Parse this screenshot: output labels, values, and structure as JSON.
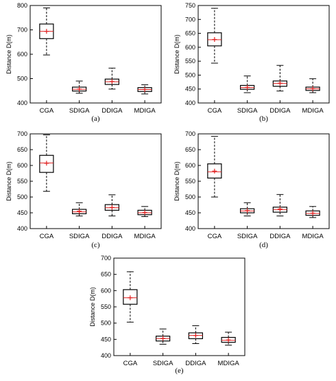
{
  "chart_data": [
    {
      "type": "box",
      "panel": "(a)",
      "ylabel": "Distance D(m)",
      "ylim": [
        400,
        800
      ],
      "yticks": [
        400,
        500,
        600,
        700,
        800
      ],
      "categories": [
        "CGA",
        "SDIGA",
        "DDIGA",
        "MDIGA"
      ],
      "boxes": [
        {
          "min": 597,
          "q1": 664,
          "median": 694,
          "q3": 724,
          "max": 790,
          "mean": 694
        },
        {
          "min": 440,
          "q1": 449,
          "median": 456,
          "q3": 465,
          "max": 490,
          "mean": 457
        },
        {
          "min": 457,
          "q1": 476,
          "median": 487,
          "q3": 498,
          "max": 543,
          "mean": 488
        },
        {
          "min": 437,
          "q1": 447,
          "median": 455,
          "q3": 463,
          "max": 475,
          "mean": 455
        }
      ],
      "colors": {
        "box": "#000000",
        "median": "#e02020",
        "mean": "#e02020"
      }
    },
    {
      "type": "box",
      "panel": "(b)",
      "ylabel": "Distance D(m)",
      "ylim": [
        400,
        750
      ],
      "yticks": [
        400,
        450,
        500,
        550,
        600,
        650,
        700,
        750
      ],
      "categories": [
        "CGA",
        "SDIGA",
        "DDIGA",
        "MDIGA"
      ],
      "boxes": [
        {
          "min": 543,
          "q1": 605,
          "median": 627,
          "q3": 652,
          "max": 740,
          "mean": 628
        },
        {
          "min": 437,
          "q1": 449,
          "median": 455,
          "q3": 463,
          "max": 497,
          "mean": 456
        },
        {
          "min": 443,
          "q1": 460,
          "median": 470,
          "q3": 479,
          "max": 535,
          "mean": 471
        },
        {
          "min": 437,
          "q1": 445,
          "median": 451,
          "q3": 457,
          "max": 487,
          "mean": 451
        }
      ],
      "colors": {
        "box": "#000000",
        "median": "#e02020",
        "mean": "#e02020"
      }
    },
    {
      "type": "box",
      "panel": "(c)",
      "ylabel": "Distance D(m)",
      "ylim": [
        400,
        700
      ],
      "yticks": [
        400,
        450,
        500,
        550,
        600,
        650,
        700
      ],
      "categories": [
        "CGA",
        "SDIGA",
        "DDIGA",
        "MDIGA"
      ],
      "boxes": [
        {
          "min": 518,
          "q1": 578,
          "median": 608,
          "q3": 632,
          "max": 697,
          "mean": 607
        },
        {
          "min": 440,
          "q1": 447,
          "median": 453,
          "q3": 461,
          "max": 482,
          "mean": 455
        },
        {
          "min": 440,
          "q1": 458,
          "median": 466,
          "q3": 476,
          "max": 507,
          "mean": 467
        },
        {
          "min": 438,
          "q1": 444,
          "median": 450,
          "q3": 458,
          "max": 470,
          "mean": 451
        }
      ],
      "colors": {
        "box": "#000000",
        "median": "#e02020",
        "mean": "#e02020"
      }
    },
    {
      "type": "box",
      "panel": "(d)",
      "ylabel": "Distance D(m)",
      "ylim": [
        400,
        700
      ],
      "yticks": [
        400,
        450,
        500,
        550,
        600,
        650,
        700
      ],
      "categories": [
        "CGA",
        "SDIGA",
        "DDIGA",
        "MDIGA"
      ],
      "boxes": [
        {
          "min": 500,
          "q1": 560,
          "median": 580,
          "q3": 605,
          "max": 692,
          "mean": 582
        },
        {
          "min": 440,
          "q1": 450,
          "median": 456,
          "q3": 463,
          "max": 482,
          "mean": 457
        },
        {
          "min": 440,
          "q1": 452,
          "median": 460,
          "q3": 468,
          "max": 508,
          "mean": 462
        },
        {
          "min": 435,
          "q1": 442,
          "median": 448,
          "q3": 456,
          "max": 470,
          "mean": 449
        }
      ],
      "colors": {
        "box": "#000000",
        "median": "#e02020",
        "mean": "#e02020"
      }
    },
    {
      "type": "box",
      "panel": "(e)",
      "ylabel": "Distance D(m)",
      "ylim": [
        400,
        700
      ],
      "yticks": [
        400,
        450,
        500,
        550,
        600,
        650,
        700
      ],
      "categories": [
        "CGA",
        "SDIGA",
        "DDIGA",
        "MDIGA"
      ],
      "boxes": [
        {
          "min": 503,
          "q1": 558,
          "median": 578,
          "q3": 603,
          "max": 658,
          "mean": 578
        },
        {
          "min": 435,
          "q1": 445,
          "median": 452,
          "q3": 460,
          "max": 482,
          "mean": 453
        },
        {
          "min": 437,
          "q1": 452,
          "median": 462,
          "q3": 470,
          "max": 492,
          "mean": 462
        },
        {
          "min": 432,
          "q1": 441,
          "median": 447,
          "q3": 456,
          "max": 472,
          "mean": 448
        }
      ],
      "colors": {
        "box": "#000000",
        "median": "#e02020",
        "mean": "#e02020"
      }
    }
  ]
}
